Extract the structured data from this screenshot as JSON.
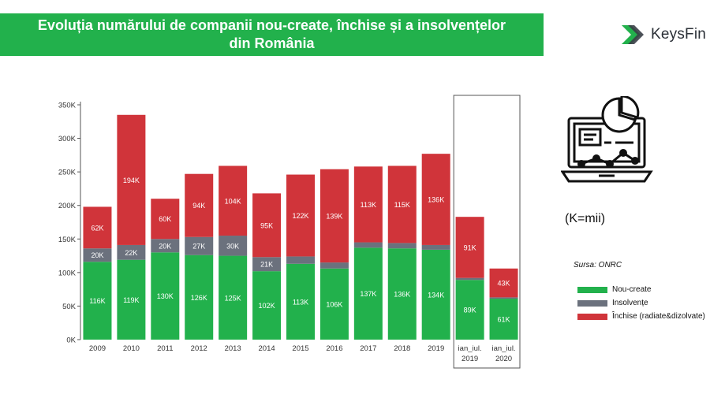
{
  "header": {
    "title_line1": "Evoluția numărului de companii nou-create, închise și a insolvențelor",
    "title_line2": "din România"
  },
  "brand": {
    "name": "KeysFin"
  },
  "notes": {
    "units": "(K=mii)",
    "source": "Sursa: ONRC"
  },
  "icon": {
    "name": "laptop-analytics-icon"
  },
  "colors": {
    "green": "#22b14c",
    "gray": "#6b717d",
    "red": "#d0343a",
    "title_bg": "#22b14c"
  },
  "chart_data": {
    "type": "bar",
    "stacked": true,
    "categories": [
      "2009",
      "2010",
      "2011",
      "2012",
      "2013",
      "2014",
      "2015",
      "2016",
      "2017",
      "2018",
      "2019",
      "ian_iul.\n2019",
      "ian_iul.\n2020"
    ],
    "series": [
      {
        "name": "Nou-create",
        "color": "#22b14c",
        "values": [
          116,
          119,
          130,
          126,
          125,
          102,
          113,
          106,
          137,
          136,
          134,
          89,
          61
        ],
        "labels": [
          "116K",
          "119K",
          "130K",
          "126K",
          "125K",
          "102K",
          "113K",
          "106K",
          "137K",
          "136K",
          "134K",
          "89K",
          "61K"
        ]
      },
      {
        "name": "Insolvențe",
        "color": "#6b717d",
        "values": [
          20,
          22,
          20,
          27,
          30,
          21,
          11,
          9,
          8,
          8,
          7,
          3,
          2
        ],
        "labels": [
          "20K",
          "22K",
          "20K",
          "27K",
          "30K",
          "21K",
          "",
          "",
          "",
          "",
          "",
          "",
          ""
        ]
      },
      {
        "name": "Închise (radiate&dizolvate)",
        "color": "#d0343a",
        "values": [
          62,
          194,
          60,
          94,
          104,
          95,
          122,
          139,
          113,
          115,
          136,
          91,
          43
        ],
        "labels": [
          "62K",
          "194K",
          "60K",
          "94K",
          "104K",
          "95K",
          "122K",
          "139K",
          "113K",
          "115K",
          "136K",
          "91K",
          "43K"
        ]
      }
    ],
    "y_ticks": [
      "0K",
      "50K",
      "100K",
      "150K",
      "200K",
      "250K",
      "300K",
      "350K"
    ],
    "ylim": [
      0,
      350
    ],
    "unit": "K",
    "highlight": {
      "categories": [
        "ian_iul.\n2019",
        "ian_iul.\n2020"
      ]
    },
    "legend": {
      "placement": "right"
    }
  }
}
